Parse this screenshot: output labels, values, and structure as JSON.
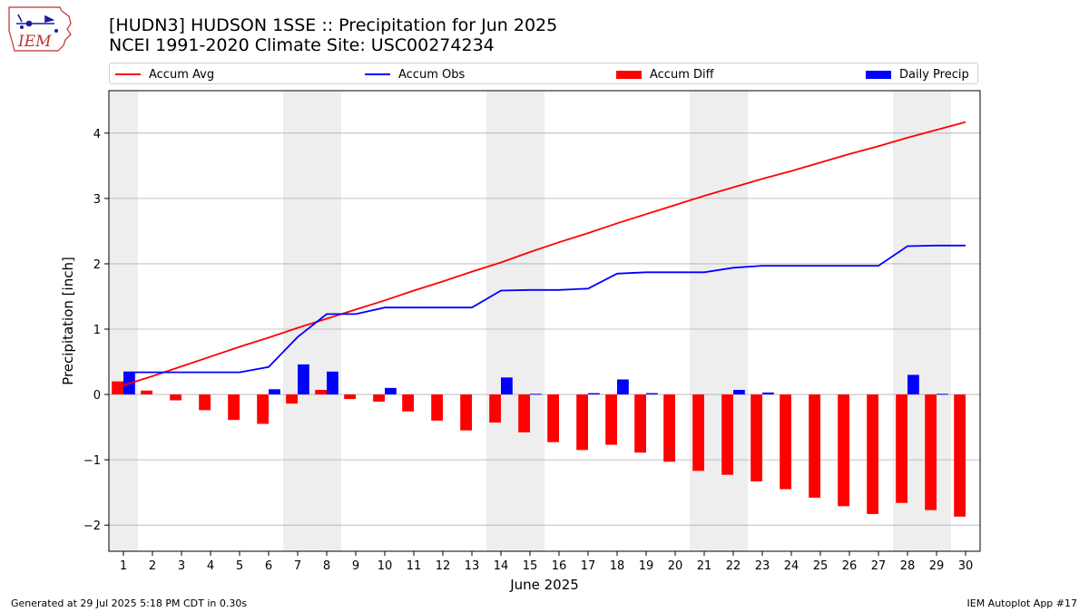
{
  "header": {
    "title_line1": "[HUDN3] HUDSON 1SSE :: Precipitation for Jun 2025",
    "title_line2": "NCEI 1991-2020 Climate Site: USC00274234",
    "logo_text": "IEM"
  },
  "legend": {
    "accum_avg": "Accum Avg",
    "accum_obs": "Accum Obs",
    "accum_diff": "Accum Diff",
    "daily_precip": "Daily Precip"
  },
  "footer": {
    "generated": "Generated at 29 Jul 2025 5:18 PM CDT in 0.30s",
    "app": "IEM Autoplot App #17"
  },
  "colors": {
    "accum_avg": "#ff0000",
    "accum_obs": "#0000ff",
    "accum_diff": "#ff0000",
    "daily_precip": "#0000ff",
    "weekend_shade": "#eeeeee",
    "grid": "#b0b0b0"
  },
  "chart_data": {
    "type": "bar",
    "xlabel": "June 2025",
    "ylabel": "Precipitation [inch]",
    "ylim": [
      -2.4,
      4.65
    ],
    "yticks": [
      -2,
      -1,
      0,
      1,
      2,
      3,
      4
    ],
    "ytick_labels": [
      "−2",
      "−1",
      "0",
      "1",
      "2",
      "3",
      "4"
    ],
    "grid": "horizontal",
    "legend_position": "top",
    "days": [
      1,
      2,
      3,
      4,
      5,
      6,
      7,
      8,
      9,
      10,
      11,
      12,
      13,
      14,
      15,
      16,
      17,
      18,
      19,
      20,
      21,
      22,
      23,
      24,
      25,
      26,
      27,
      28,
      29,
      30
    ],
    "shaded_days": [
      [
        1,
        1
      ],
      [
        7,
        8
      ],
      [
        14,
        15
      ],
      [
        21,
        22
      ],
      [
        28,
        29
      ]
    ],
    "series": [
      {
        "name": "Accum Avg",
        "kind": "line",
        "values": [
          0.14,
          0.28,
          0.43,
          0.58,
          0.73,
          0.87,
          1.02,
          1.16,
          1.3,
          1.44,
          1.59,
          1.73,
          1.88,
          2.02,
          2.18,
          2.33,
          2.47,
          2.62,
          2.76,
          2.9,
          3.04,
          3.17,
          3.3,
          3.42,
          3.55,
          3.68,
          3.8,
          3.93,
          4.05,
          4.17
        ]
      },
      {
        "name": "Accum Obs",
        "kind": "line",
        "values": [
          0.34,
          0.34,
          0.34,
          0.34,
          0.34,
          0.42,
          0.88,
          1.23,
          1.23,
          1.33,
          1.33,
          1.33,
          1.33,
          1.59,
          1.6,
          1.6,
          1.62,
          1.85,
          1.87,
          1.87,
          1.87,
          1.94,
          1.97,
          1.97,
          1.97,
          1.97,
          1.97,
          2.27,
          2.28,
          2.28
        ]
      },
      {
        "name": "Accum Diff",
        "kind": "bar",
        "values": [
          0.2,
          0.06,
          -0.09,
          -0.24,
          -0.39,
          -0.45,
          -0.14,
          0.07,
          -0.07,
          -0.11,
          -0.26,
          -0.4,
          -0.55,
          -0.43,
          -0.58,
          -0.73,
          -0.85,
          -0.77,
          -0.89,
          -1.03,
          -1.17,
          -1.23,
          -1.33,
          -1.45,
          -1.58,
          -1.71,
          -1.83,
          -1.66,
          -1.77,
          -1.87
        ]
      },
      {
        "name": "Daily Precip",
        "kind": "bar",
        "values": [
          0.34,
          0,
          0,
          0,
          0,
          0.08,
          0.46,
          0.35,
          0,
          0.1,
          0,
          0,
          0,
          0.26,
          0.01,
          0,
          0.02,
          0.23,
          0.02,
          0,
          0,
          0.07,
          0.03,
          0,
          0,
          0,
          0,
          0.3,
          0.01,
          0
        ]
      }
    ]
  }
}
